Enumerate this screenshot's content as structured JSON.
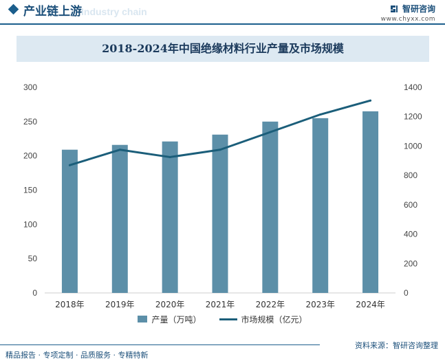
{
  "header": {
    "section_title": "产业链上游",
    "ghost_text": "Industry chain",
    "brand_name": "智研咨询",
    "brand_url": "www.chyxx.com"
  },
  "colors": {
    "bar": "#5c8fa8",
    "line": "#1b5e7a",
    "accent": "#1b5e8c"
  },
  "chart_data": {
    "type": "bar+line",
    "title": "2018-2024年中国绝缘材料行业产量及市场规模",
    "categories": [
      "2018年",
      "2019年",
      "2020年",
      "2021年",
      "2022年",
      "2023年",
      "2024年"
    ],
    "series": [
      {
        "name": "产量（万吨）",
        "type": "bar",
        "axis": "left",
        "values": [
          209,
          216,
          221,
          231,
          250,
          255,
          265
        ]
      },
      {
        "name": "市场规模（亿元）",
        "type": "line",
        "axis": "right",
        "values": [
          870,
          975,
          925,
          975,
          1095,
          1215,
          1310
        ]
      }
    ],
    "y_left": {
      "min": 0,
      "max": 300,
      "ticks": [
        0,
        50,
        100,
        150,
        200,
        250,
        300
      ]
    },
    "y_right": {
      "min": 0,
      "max": 1400,
      "ticks": [
        0,
        200,
        400,
        600,
        800,
        1000,
        1200,
        1400
      ]
    },
    "legend_position": "bottom",
    "grid": false
  },
  "footer": {
    "left": "精品报告 · 专项定制 · 品质服务 · 专精特新",
    "source": "资料来源：智研咨询整理"
  }
}
